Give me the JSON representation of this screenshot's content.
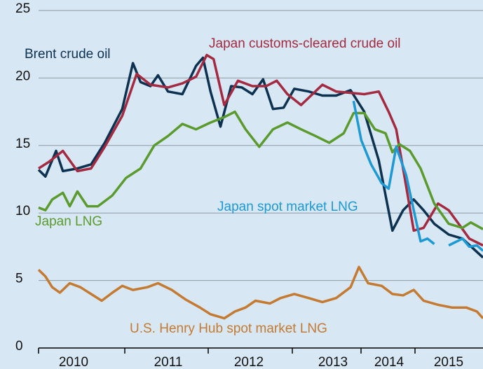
{
  "chart_data": {
    "type": "line",
    "xlim": [
      2010,
      2015.84
    ],
    "ylim": [
      0,
      25
    ],
    "yticks": [
      0,
      5,
      10,
      15,
      20,
      25
    ],
    "grid": true,
    "categories": [
      "2010",
      "2011",
      "2012",
      "2013",
      "2014",
      "2015"
    ],
    "series": [
      {
        "name": "Brent crude oil",
        "color": "#0d3150",
        "x": [
          2010.0,
          2010.09,
          2010.23,
          2010.32,
          2010.51,
          2010.69,
          2010.87,
          2011.1,
          2011.24,
          2011.34,
          2011.47,
          2011.57,
          2011.7,
          2011.89,
          2012.07,
          2012.16,
          2012.26,
          2012.39,
          2012.53,
          2012.67,
          2012.81,
          2012.95,
          2013.08,
          2013.22,
          2013.36,
          2013.55,
          2013.73,
          2013.91,
          2014.1,
          2014.28,
          2014.47,
          2014.65,
          2014.79,
          2014.93,
          2015.06,
          2015.2,
          2015.39,
          2015.57,
          2015.84
        ],
        "values": [
          13.2,
          12.7,
          14.6,
          13.1,
          13.3,
          13.6,
          15.2,
          17.7,
          21.1,
          19.7,
          19.4,
          20.2,
          19.0,
          18.8,
          20.9,
          21.5,
          19.0,
          16.4,
          19.4,
          19.3,
          18.8,
          19.9,
          17.7,
          17.8,
          19.2,
          19.0,
          18.7,
          18.7,
          19.1,
          17.5,
          13.9,
          8.7,
          10.2,
          11.0,
          10.2,
          9.2,
          8.4,
          8.1,
          6.7
        ]
      },
      {
        "name": "Japan customs-cleared crude oil",
        "color": "#a32a40",
        "x": [
          2010.0,
          2010.14,
          2010.32,
          2010.51,
          2010.69,
          2010.87,
          2011.1,
          2011.29,
          2011.47,
          2011.7,
          2011.89,
          2012.07,
          2012.21,
          2012.3,
          2012.44,
          2012.62,
          2012.81,
          2012.99,
          2013.13,
          2013.27,
          2013.45,
          2013.73,
          2013.91,
          2014.1,
          2014.28,
          2014.47,
          2014.6,
          2014.7,
          2014.79,
          2014.93,
          2015.06,
          2015.25,
          2015.39,
          2015.52,
          2015.66,
          2015.84
        ],
        "values": [
          13.3,
          13.8,
          14.6,
          13.1,
          13.3,
          14.9,
          17.2,
          20.3,
          19.5,
          19.3,
          19.6,
          20.1,
          21.7,
          21.4,
          18.0,
          19.8,
          19.4,
          19.4,
          19.8,
          18.8,
          18.0,
          19.5,
          19.0,
          18.9,
          18.8,
          19.0,
          17.5,
          16.2,
          13.3,
          8.7,
          8.9,
          10.7,
          10.2,
          9.2,
          8.1,
          7.6
        ]
      },
      {
        "name": "Japan LNG",
        "color": "#5b9b2e",
        "x": [
          2010.0,
          2010.09,
          2010.18,
          2010.32,
          2010.41,
          2010.51,
          2010.64,
          2010.78,
          2010.97,
          2011.15,
          2011.34,
          2011.52,
          2011.7,
          2011.89,
          2012.07,
          2012.26,
          2012.44,
          2012.58,
          2012.72,
          2012.9,
          2013.08,
          2013.27,
          2013.45,
          2013.64,
          2013.82,
          2014.01,
          2014.14,
          2014.28,
          2014.42,
          2014.56,
          2014.65,
          2014.74,
          2014.88,
          2015.02,
          2015.2,
          2015.39,
          2015.57,
          2015.68,
          2015.84
        ],
        "values": [
          10.4,
          10.2,
          11.0,
          11.5,
          10.5,
          11.6,
          10.5,
          10.5,
          11.3,
          12.6,
          13.3,
          15.0,
          15.7,
          16.6,
          16.2,
          16.7,
          17.1,
          17.5,
          16.2,
          14.9,
          16.2,
          16.7,
          16.2,
          15.7,
          15.2,
          15.9,
          17.4,
          17.4,
          16.2,
          15.9,
          14.5,
          15.1,
          14.6,
          13.3,
          10.7,
          9.2,
          8.9,
          9.3,
          8.8
        ]
      },
      {
        "name": "Japan spot market LNG",
        "color": "#1d9ad6",
        "x": [
          2014.14,
          2014.24,
          2014.37,
          2014.51,
          2014.6,
          2014.7,
          2014.83,
          2014.93,
          2015.02,
          2015.11,
          2015.2,
          2015.3,
          2015.39,
          2015.57,
          2015.66,
          2015.76,
          2015.84
        ],
        "values": [
          18.3,
          15.4,
          13.6,
          12.2,
          11.8,
          14.9,
          12.8,
          10.2,
          7.9,
          8.1,
          7.7,
          null,
          7.6,
          8.1,
          7.5,
          7.6,
          7.2
        ]
      },
      {
        "name": "U.S. Henry Hub spot market LNG",
        "color": "#c47a31",
        "x": [
          2010.0,
          2010.09,
          2010.18,
          2010.28,
          2010.41,
          2010.55,
          2010.69,
          2010.83,
          2010.97,
          2011.1,
          2011.24,
          2011.43,
          2011.57,
          2011.75,
          2011.93,
          2012.12,
          2012.26,
          2012.44,
          2012.58,
          2012.72,
          2012.85,
          2013.04,
          2013.18,
          2013.36,
          2013.55,
          2013.73,
          2013.91,
          2014.1,
          2014.21,
          2014.33,
          2014.51,
          2014.65,
          2014.79,
          2014.93,
          2015.06,
          2015.25,
          2015.43,
          2015.62,
          2015.76,
          2015.84
        ],
        "values": [
          5.8,
          5.3,
          4.5,
          4.1,
          4.8,
          4.5,
          4.0,
          3.5,
          4.1,
          4.6,
          4.3,
          4.5,
          4.8,
          4.3,
          3.6,
          3.0,
          2.5,
          2.2,
          2.7,
          3.0,
          3.5,
          3.3,
          3.7,
          4.0,
          3.7,
          3.4,
          3.7,
          4.5,
          6.0,
          4.8,
          4.6,
          4.0,
          3.9,
          4.3,
          3.5,
          3.2,
          3.0,
          3.0,
          2.7,
          2.2
        ]
      }
    ]
  }
}
